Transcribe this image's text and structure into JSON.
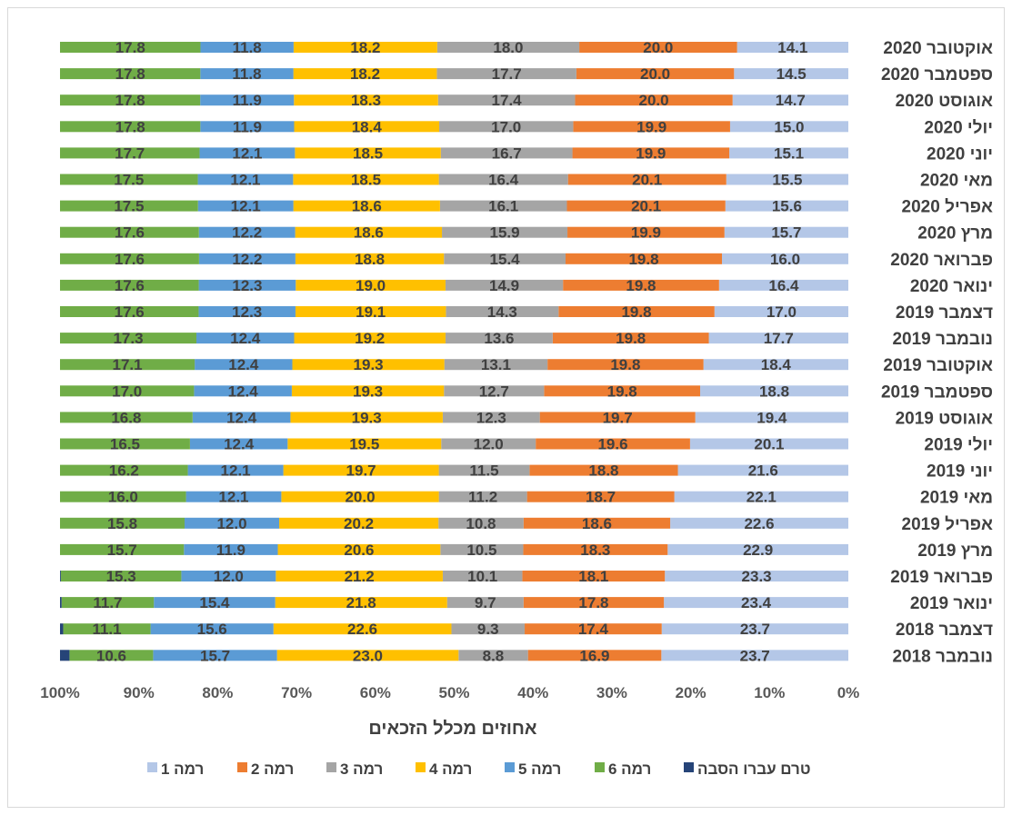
{
  "chart_data": {
    "type": "bar",
    "orientation": "horizontal",
    "stacked": "percent",
    "x_axis_direction": "reversed",
    "xlabel": "אחוזים מכלל הזכאים",
    "xlim": [
      0,
      100
    ],
    "x_ticks": [
      "0%",
      "10%",
      "20%",
      "30%",
      "40%",
      "50%",
      "60%",
      "70%",
      "80%",
      "90%",
      "100%"
    ],
    "legend_position": "bottom",
    "grid": false,
    "categories": [
      "אוקטובר 2020",
      "ספטמבר 2020",
      "אוגוסט 2020",
      "יולי 2020",
      "יוני 2020",
      "מאי 2020",
      "אפריל 2020",
      "מרץ 2020",
      "פברואר 2020",
      "ינואר 2020",
      "דצמבר 2019",
      "נובמבר 2019",
      "אוקטובר 2019",
      "ספטמבר 2019",
      "אוגוסט 2019",
      "יולי 2019",
      "יוני 2019",
      "מאי 2019",
      "אפריל 2019",
      "מרץ 2019",
      "פברואר 2019",
      "ינואר 2019",
      "דצמבר 2018",
      "נובמבר 2018"
    ],
    "series": [
      {
        "name": "רמה 1",
        "color": "#b4c7e7",
        "values": [
          14.1,
          14.5,
          14.7,
          15.0,
          15.1,
          15.5,
          15.6,
          15.7,
          16.0,
          16.4,
          17.0,
          17.7,
          18.4,
          18.8,
          19.4,
          20.1,
          21.6,
          22.1,
          22.6,
          22.9,
          23.3,
          23.4,
          23.7,
          23.7
        ]
      },
      {
        "name": "רמה 2",
        "color": "#ed7d31",
        "values": [
          20.0,
          20.0,
          20.0,
          19.9,
          19.9,
          20.1,
          20.1,
          19.9,
          19.8,
          19.8,
          19.8,
          19.8,
          19.8,
          19.8,
          19.7,
          19.6,
          18.8,
          18.7,
          18.6,
          18.3,
          18.1,
          17.8,
          17.4,
          16.9
        ]
      },
      {
        "name": "רמה 3",
        "color": "#a5a5a5",
        "values": [
          18.0,
          17.7,
          17.4,
          17.0,
          16.7,
          16.4,
          16.1,
          15.9,
          15.4,
          14.9,
          14.3,
          13.6,
          13.1,
          12.7,
          12.3,
          12.0,
          11.5,
          11.2,
          10.8,
          10.5,
          10.1,
          9.7,
          9.3,
          8.8
        ]
      },
      {
        "name": "רמה 4",
        "color": "#ffc000",
        "values": [
          18.2,
          18.2,
          18.3,
          18.4,
          18.5,
          18.5,
          18.6,
          18.6,
          18.8,
          19.0,
          19.1,
          19.2,
          19.3,
          19.3,
          19.3,
          19.5,
          19.7,
          20.0,
          20.2,
          20.6,
          21.2,
          21.8,
          22.6,
          23.0
        ]
      },
      {
        "name": "רמה 5",
        "color": "#5b9bd5",
        "values": [
          11.8,
          11.8,
          11.9,
          11.9,
          12.1,
          12.1,
          12.1,
          12.2,
          12.2,
          12.3,
          12.3,
          12.4,
          12.4,
          12.4,
          12.4,
          12.4,
          12.1,
          12.1,
          12.0,
          11.9,
          12.0,
          15.4,
          15.6,
          15.7
        ]
      },
      {
        "name": "רמה 6",
        "color": "#70ad47",
        "values": [
          17.8,
          17.8,
          17.8,
          17.8,
          17.7,
          17.5,
          17.5,
          17.6,
          17.6,
          17.6,
          17.6,
          17.3,
          17.1,
          17.0,
          16.8,
          16.5,
          16.2,
          16.0,
          15.8,
          15.7,
          15.3,
          11.7,
          11.1,
          10.6
        ]
      },
      {
        "name": "טרם עברו הסבה",
        "color": "#264478",
        "values": [
          0,
          0,
          0,
          0,
          0,
          0,
          0,
          0,
          0,
          0,
          0,
          0,
          0,
          0,
          0,
          0,
          0,
          0,
          0,
          0,
          0.1,
          0.2,
          0.4,
          1.2
        ],
        "labels_shown": false
      }
    ],
    "legend_order": [
      "רמה 1",
      "רמה 2",
      "רמה 3",
      "רמה 4",
      "רמה 5",
      "רמה 6",
      "טרם עברו הסבה"
    ]
  }
}
